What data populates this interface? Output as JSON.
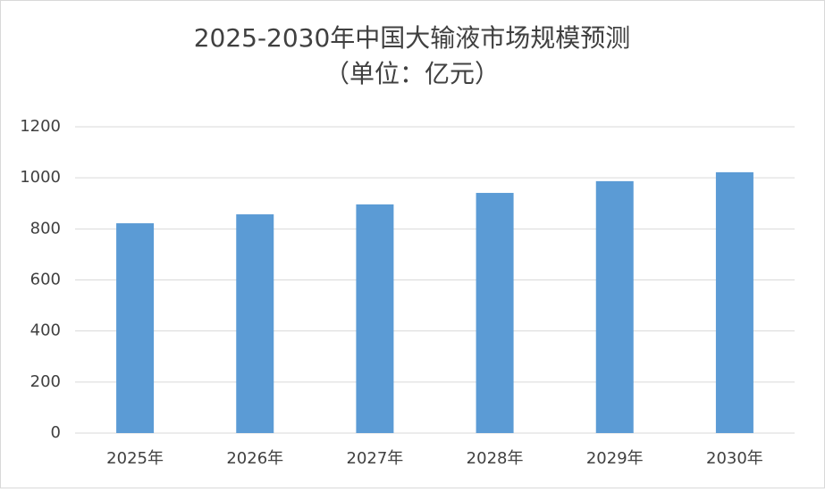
{
  "chart_data": {
    "type": "bar",
    "title": "2025-2030年中国大输液市场规模预测",
    "subtitle": "（单位：亿元）",
    "categories": [
      "2025年",
      "2026年",
      "2027年",
      "2028年",
      "2029年",
      "2030年"
    ],
    "values": [
      822,
      857,
      896,
      941,
      987,
      1022
    ],
    "color": "#5b9bd5",
    "ylim": [
      0,
      1200
    ],
    "yticks": [
      0,
      200,
      400,
      600,
      800,
      1000,
      1200
    ],
    "grid": true
  }
}
